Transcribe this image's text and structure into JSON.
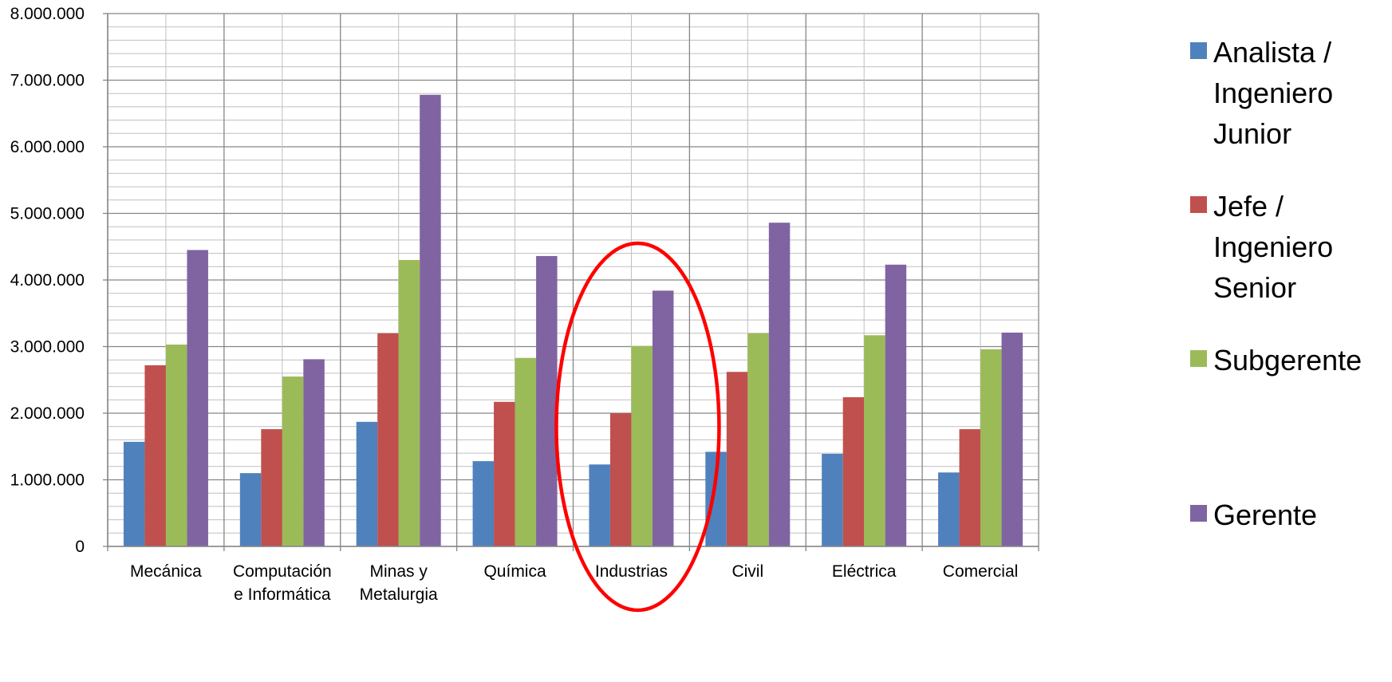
{
  "chart_data": {
    "type": "bar",
    "title": "",
    "xlabel": "",
    "ylabel": "",
    "ylim": [
      0,
      8000000
    ],
    "yticks": [
      0,
      1000000,
      2000000,
      3000000,
      4000000,
      5000000,
      6000000,
      7000000,
      8000000
    ],
    "ytick_labels": [
      "0",
      "1.000.000",
      "2.000.000",
      "3.000.000",
      "4.000.000",
      "5.000.000",
      "6.000.000",
      "7.000.000",
      "8.000.000"
    ],
    "minor_grid_step": 200000,
    "grid": true,
    "legend_position": "right",
    "categories": [
      [
        "Mecánica"
      ],
      [
        "Computación",
        "e Informática"
      ],
      [
        "Minas y",
        "Metalurgia"
      ],
      [
        "Química"
      ],
      [
        "Industrias"
      ],
      [
        "Civil"
      ],
      [
        "Eléctrica"
      ],
      [
        "Comercial"
      ]
    ],
    "series": [
      {
        "name": "Analista / Ingeniero Junior",
        "legend_lines": "Analista /\nIngeniero\nJunior",
        "color": "#4F81BD",
        "values": [
          1570000,
          1100000,
          1870000,
          1280000,
          1230000,
          1420000,
          1390000,
          1110000
        ]
      },
      {
        "name": "Jefe / Ingeniero Senior",
        "legend_lines": "Jefe /\nIngeniero\nSenior",
        "color": "#C0504D",
        "values": [
          2720000,
          1760000,
          3200000,
          2170000,
          2000000,
          2620000,
          2240000,
          1760000
        ]
      },
      {
        "name": "Subgerente",
        "legend_lines": "Subgerente",
        "color": "#9BBB59",
        "values": [
          3030000,
          2550000,
          4300000,
          2830000,
          3010000,
          3200000,
          3170000,
          2960000
        ]
      },
      {
        "name": "Gerente",
        "legend_lines": "Gerente",
        "color": "#8064A2",
        "values": [
          4450000,
          2810000,
          6780000,
          4360000,
          3840000,
          4860000,
          4230000,
          3210000
        ]
      }
    ],
    "annotation": {
      "shape": "ellipse",
      "target_category": "Industrias",
      "color": "#FF0000"
    }
  }
}
